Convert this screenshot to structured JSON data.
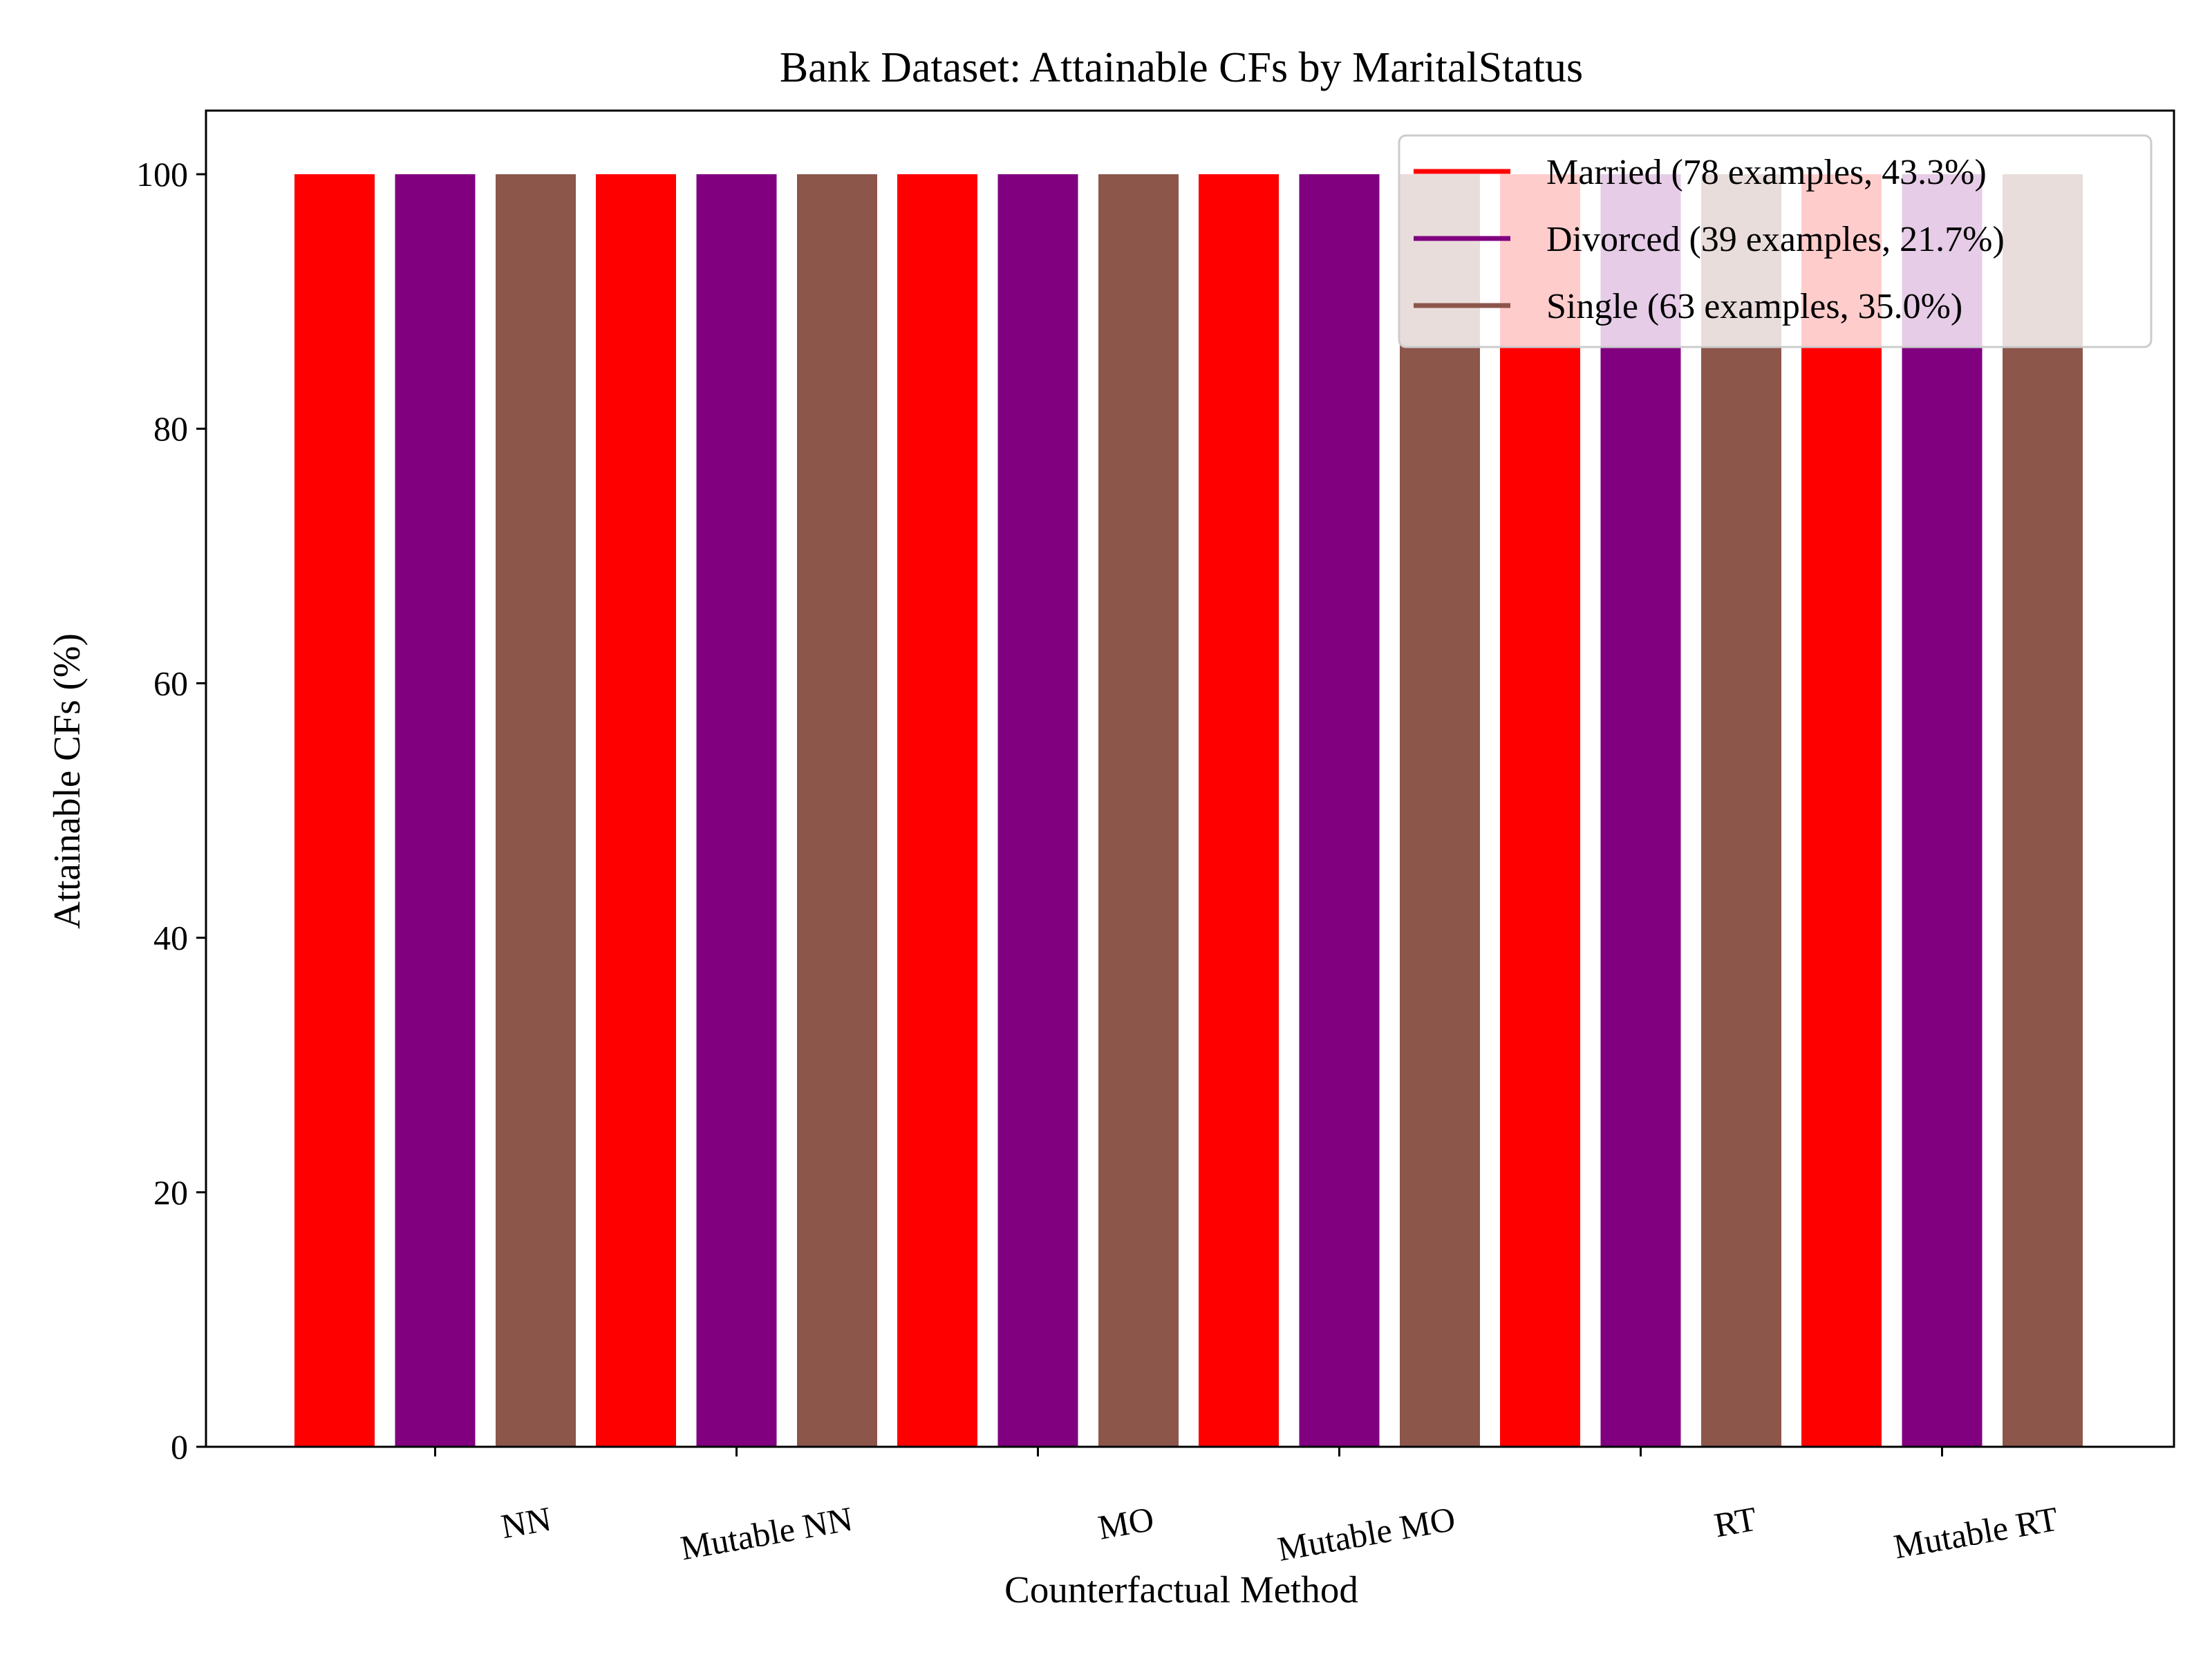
{
  "chart_data": {
    "type": "bar",
    "title": "Bank Dataset: Attainable CFs by MaritalStatus",
    "xlabel": "Counterfactual Method",
    "ylabel": "Attainable CFs (%)",
    "categories": [
      "NN",
      "Mutable NN",
      "MO",
      "Mutable MO",
      "RT",
      "Mutable RT"
    ],
    "ylim": [
      0,
      105
    ],
    "yticks": [
      0,
      20,
      40,
      60,
      80,
      100
    ],
    "grid": false,
    "legend_position": "top-right",
    "series": [
      {
        "name": "Married (78 examples, 43.3%)",
        "color": "#ff0000",
        "values": [
          100,
          100,
          100,
          100,
          100,
          100
        ]
      },
      {
        "name": "Divorced (39 examples, 21.7%)",
        "color": "#800080",
        "values": [
          100,
          100,
          100,
          100,
          100,
          100
        ]
      },
      {
        "name": "Single (63 examples, 35.0%)",
        "color": "#8c564b",
        "values": [
          100,
          100,
          100,
          100,
          100,
          100
        ]
      }
    ]
  }
}
